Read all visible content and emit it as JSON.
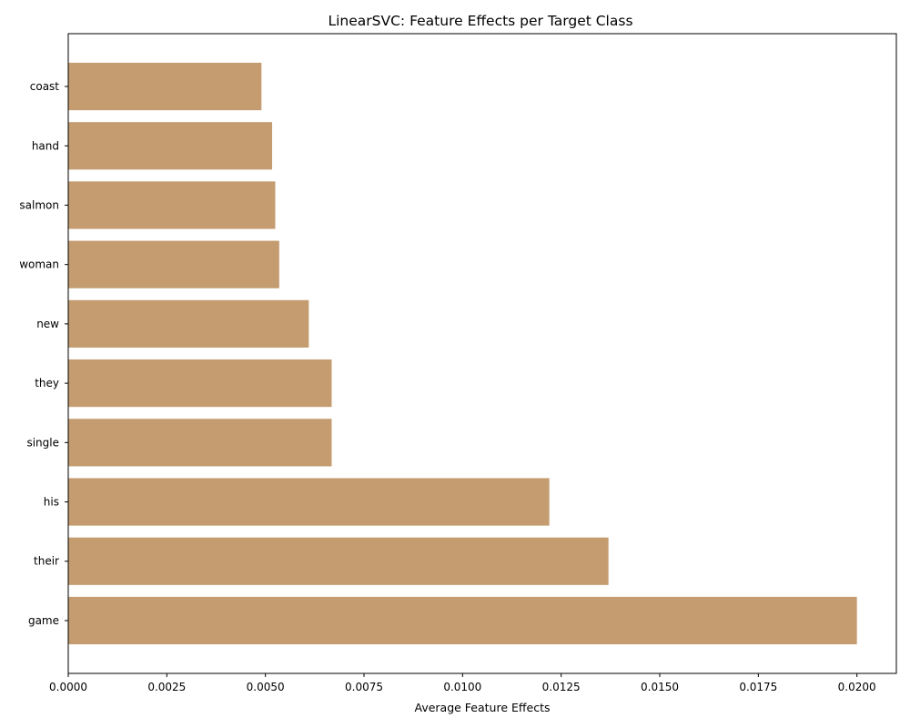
{
  "chart_data": {
    "type": "bar",
    "orientation": "horizontal",
    "title": "LinearSVC: Feature Effects per Target Class",
    "xlabel": "Average Feature Effects",
    "ylabel": "",
    "categories": [
      "coast",
      "hand",
      "salmon",
      "woman",
      "new",
      "they",
      "single",
      "his",
      "their",
      "game"
    ],
    "values": [
      0.0049,
      0.00517,
      0.00525,
      0.00535,
      0.0061,
      0.00668,
      0.00668,
      0.0122,
      0.0137,
      0.02
    ],
    "xlim": [
      0,
      0.021
    ],
    "xticks": [
      "0.0000",
      "0.0025",
      "0.0050",
      "0.0075",
      "0.0100",
      "0.0125",
      "0.0150",
      "0.0175",
      "0.0200"
    ],
    "bar_color": "#c49c70",
    "grid": false,
    "legend": "none"
  }
}
